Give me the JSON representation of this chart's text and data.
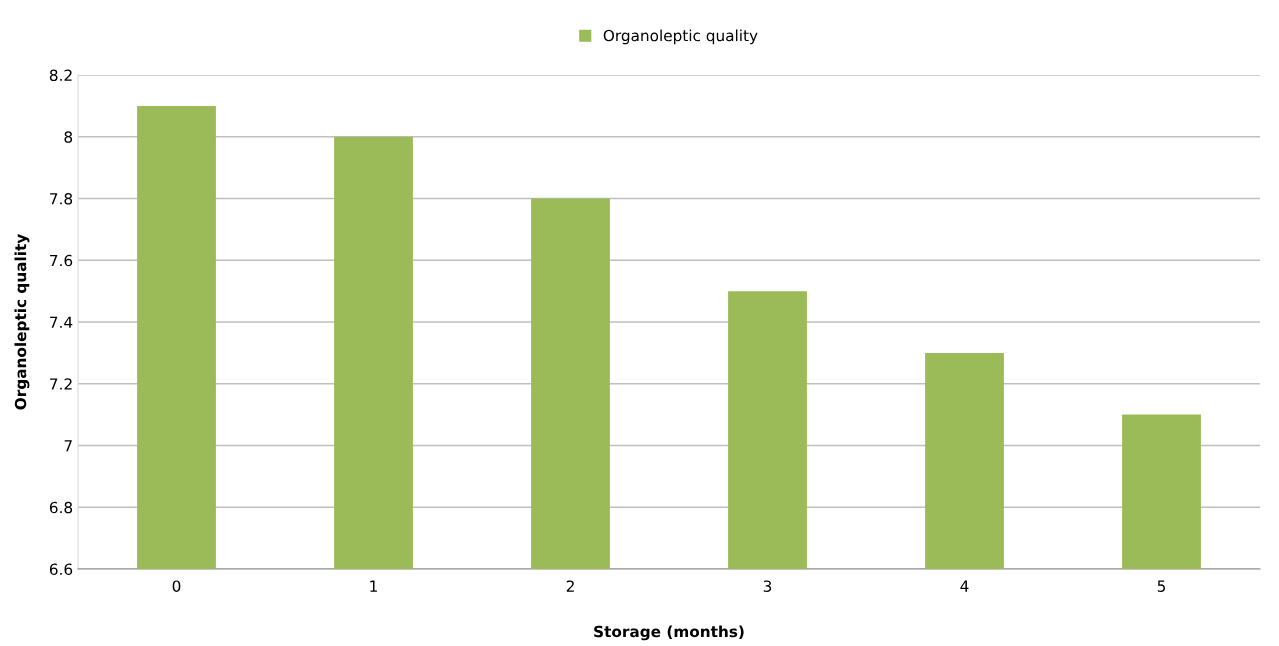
{
  "chart_data": {
    "type": "bar",
    "xlabel": "Storage (months)",
    "ylabel": "Organoleptic quality",
    "categories": [
      "0",
      "1",
      "2",
      "3",
      "4",
      "5"
    ],
    "series": [
      {
        "name": "Organoleptic quality",
        "color": "#9bbb59",
        "values": [
          8.1,
          8.0,
          7.8,
          7.5,
          7.3,
          7.1
        ]
      }
    ],
    "ylim": [
      6.6,
      8.2
    ],
    "yticks": [
      6.6,
      6.8,
      7,
      7.2,
      7.4,
      7.6,
      7.8,
      8,
      8.2
    ],
    "grid": "y",
    "legend": "top"
  }
}
